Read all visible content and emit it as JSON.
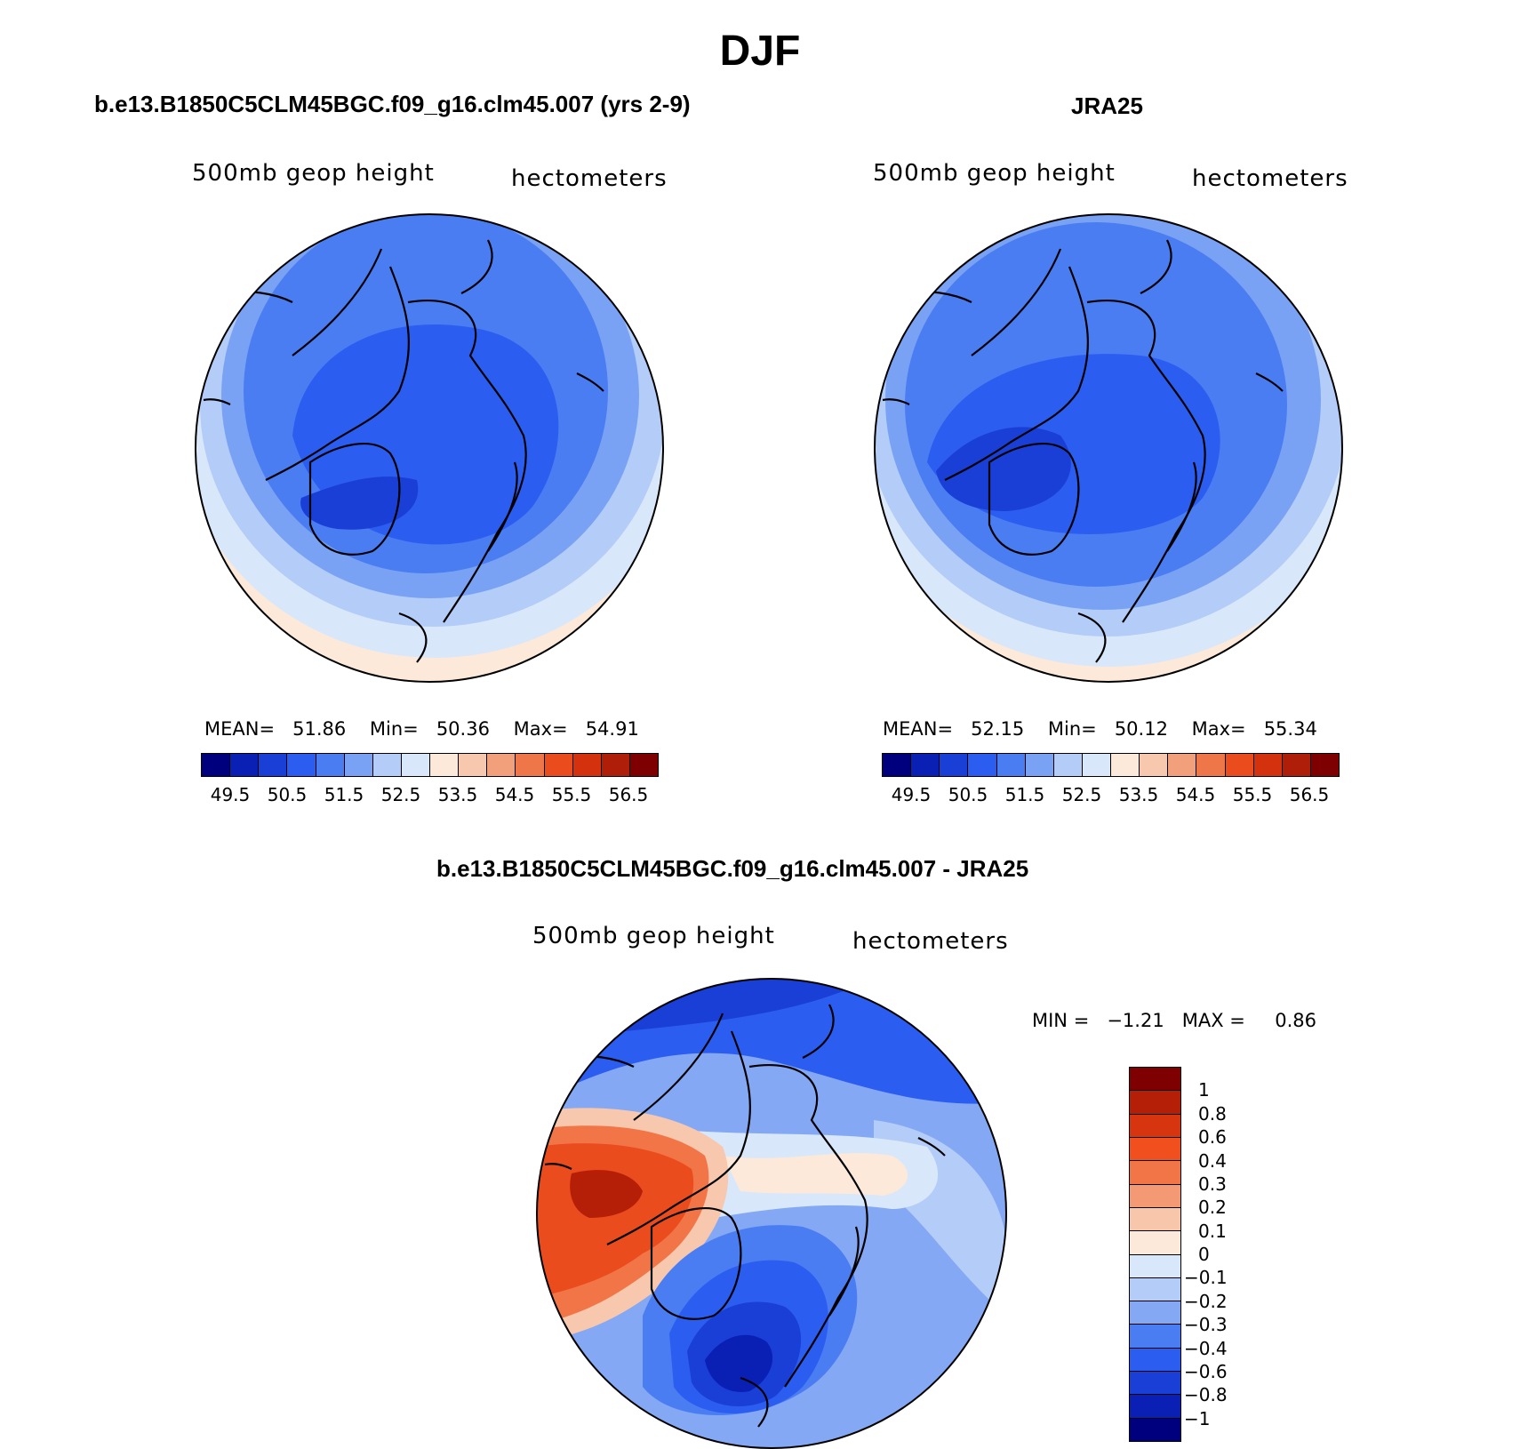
{
  "title": "DJF",
  "panels": {
    "top_left": {
      "title": "b.e13.B1850C5CLM45BGC.f09_g16.clm45.007 (yrs 2-9)",
      "variable": "500mb geop height",
      "units": "hectometers",
      "stats": {
        "mean_label": "MEAN=",
        "mean": "51.86",
        "min_label": "Min=",
        "min": "50.36",
        "max_label": "Max=",
        "max": "54.91"
      }
    },
    "top_right": {
      "title": "JRA25",
      "variable": "500mb geop height",
      "units": "hectometers",
      "stats": {
        "mean_label": "MEAN=",
        "mean": "52.15",
        "min_label": "Min=",
        "min": "50.12",
        "max_label": "Max=",
        "max": "55.34"
      }
    },
    "bottom": {
      "title": "b.e13.B1850C5CLM45BGC.f09_g16.clm45.007 - JRA25",
      "variable": "500mb geop height",
      "units": "hectometers",
      "stats": {
        "min_label": "MIN =",
        "min": "−1.21",
        "max_label": "MAX =",
        "max": "0.86"
      }
    }
  },
  "colorbar_abs": {
    "ticks": [
      "49.5",
      "50.5",
      "51.5",
      "52.5",
      "53.5",
      "54.5",
      "55.5",
      "56.5"
    ],
    "colors": [
      "#00007f",
      "#0a1fb4",
      "#1a3fd6",
      "#2b5ef0",
      "#4a7df2",
      "#7aa2f4",
      "#b3ccf8",
      "#d8e8fa",
      "#fde9da",
      "#f8c8ae",
      "#f2a07c",
      "#ef7648",
      "#ea4c1e",
      "#d4310f",
      "#ae1e08",
      "#7f0000"
    ]
  },
  "colorbar_diff": {
    "ticks": [
      "1",
      "0.8",
      "0.6",
      "0.4",
      "0.3",
      "0.2",
      "0.1",
      "0",
      "−0.1",
      "−0.2",
      "−0.3",
      "−0.4",
      "−0.6",
      "−0.8",
      "−1"
    ],
    "colors": [
      "#7f0000",
      "#b51f08",
      "#d73510",
      "#f24f1f",
      "#f27548",
      "#f39a75",
      "#f8c7ab",
      "#fde9da",
      "#d8e8fa",
      "#b3ccf8",
      "#85a8f4",
      "#4a7df2",
      "#2b5ef0",
      "#1a3fd6",
      "#0a1fb4",
      "#00007f"
    ]
  }
}
